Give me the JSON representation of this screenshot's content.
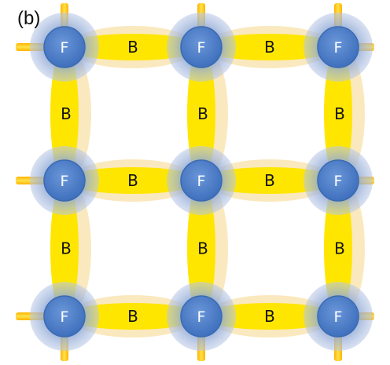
{
  "panel_label": "(b)",
  "node_label": "F",
  "bond_label": "B",
  "colors": {
    "bond_core": "#ffe600",
    "bond_glow": "#f8e2a8",
    "stub": "#ffcc00",
    "node_fill": "#4f7fc6",
    "node_halo": "#9fb4d8",
    "node_edge": "#3a6ab2"
  },
  "lattice": {
    "rows": 3,
    "cols": 3
  }
}
